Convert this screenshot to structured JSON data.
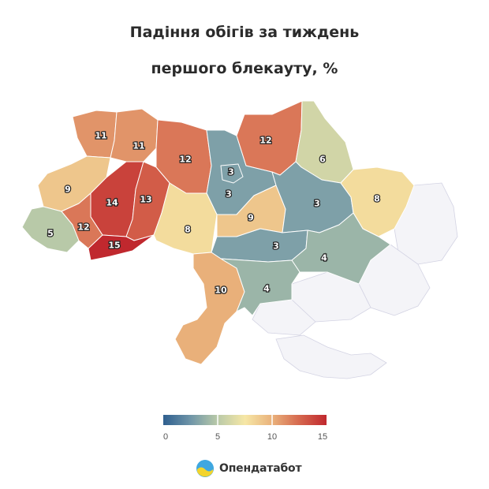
{
  "title_line1": "Падіння обігів за тиждень",
  "title_line2": "першого блекауту, %",
  "brand": "Опендатабот",
  "colors": {
    "scale": [
      "#2f5f8f",
      "#7096a8",
      "#b8c9a8",
      "#f6e7a6",
      "#e9b07a",
      "#d6694f",
      "#c0282e"
    ],
    "occupied": "#f4f4f8"
  },
  "legend": {
    "min": 0,
    "max": 15,
    "ticks": [
      "0",
      "5",
      "10",
      "15"
    ]
  },
  "chart_data": {
    "type": "choropleth",
    "unit": "%",
    "regions": [
      {
        "id": "volyn",
        "value": 11
      },
      {
        "id": "rivne",
        "value": 11
      },
      {
        "id": "zhytomyr",
        "value": 12
      },
      {
        "id": "kyiv-oblast",
        "value": 3
      },
      {
        "id": "kyiv-city",
        "value": 3
      },
      {
        "id": "chernihiv",
        "value": 12
      },
      {
        "id": "sumy",
        "value": 6
      },
      {
        "id": "lviv",
        "value": 9
      },
      {
        "id": "ternopil",
        "value": 14
      },
      {
        "id": "khmelnytskyi",
        "value": 13
      },
      {
        "id": "vinnytsia",
        "value": 8
      },
      {
        "id": "cherkasy",
        "value": 9
      },
      {
        "id": "poltava",
        "value": 3
      },
      {
        "id": "kharkiv",
        "value": 8
      },
      {
        "id": "zakarpattia",
        "value": 5
      },
      {
        "id": "ivano-frankivsk",
        "value": 12
      },
      {
        "id": "chernivtsi",
        "value": 15
      },
      {
        "id": "kirovohrad",
        "value": 3
      },
      {
        "id": "dnipropetrovsk",
        "value": 4
      },
      {
        "id": "odesa",
        "value": 10
      },
      {
        "id": "mykolaiv",
        "value": 4
      }
    ]
  }
}
